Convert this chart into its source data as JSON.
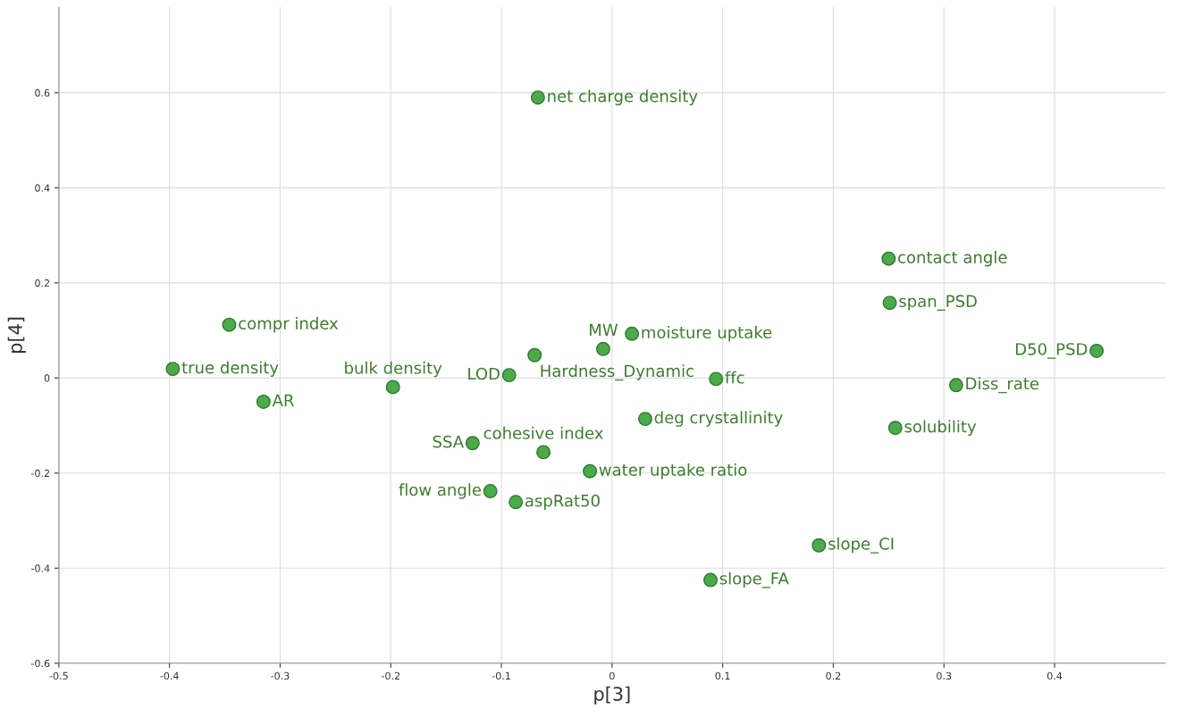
{
  "chart_data": {
    "type": "scatter",
    "xlabel": "p[3]",
    "ylabel": "p[4]",
    "xlim": [
      -0.5,
      0.5
    ],
    "ylim": [
      -0.6,
      0.78
    ],
    "xticks": [
      -0.5,
      -0.4,
      -0.3,
      -0.2,
      -0.1,
      0,
      0.1,
      0.2,
      0.3,
      0.4
    ],
    "yticks": [
      -0.6,
      -0.4,
      -0.2,
      0,
      0.2,
      0.4,
      0.6
    ],
    "grid": true,
    "marker": "circle",
    "series": [
      {
        "color": "#4caa4c",
        "x": [
          -0.067,
          0.25,
          0.251,
          -0.346,
          -0.008,
          0.018,
          0.438,
          -0.397,
          -0.198,
          -0.093,
          -0.07,
          0.094,
          0.311,
          -0.315,
          0.03,
          0.256,
          -0.126,
          -0.062,
          -0.02,
          -0.11,
          -0.087,
          0.187,
          0.089
        ],
        "values": [
          0.59,
          0.251,
          0.158,
          0.112,
          0.061,
          0.093,
          0.057,
          0.019,
          -0.019,
          0.006,
          0.048,
          -0.002,
          -0.015,
          -0.05,
          -0.086,
          -0.105,
          -0.137,
          -0.156,
          -0.196,
          -0.238,
          -0.261,
          -0.352,
          -0.425
        ]
      }
    ],
    "annotations": [
      {
        "text": "net charge density",
        "x": -0.067,
        "y": 0.59
      },
      {
        "text": "contact angle",
        "x": 0.25,
        "y": 0.251
      },
      {
        "text": "span_PSD",
        "x": 0.251,
        "y": 0.158
      },
      {
        "text": "compr index",
        "x": -0.346,
        "y": 0.112
      },
      {
        "text": "MW",
        "x": -0.008,
        "y": 0.061
      },
      {
        "text": "moisture uptake",
        "x": 0.018,
        "y": 0.093
      },
      {
        "text": "D50_PSD",
        "x": 0.438,
        "y": 0.057
      },
      {
        "text": "true density",
        "x": -0.397,
        "y": 0.019
      },
      {
        "text": "bulk density",
        "x": -0.198,
        "y": -0.019
      },
      {
        "text": "LOD",
        "x": -0.093,
        "y": 0.006
      },
      {
        "text": "Hardness_Dynamic",
        "x": -0.07,
        "y": 0.048
      },
      {
        "text": "ffc",
        "x": 0.094,
        "y": -0.002
      },
      {
        "text": "Diss_rate",
        "x": 0.311,
        "y": -0.015
      },
      {
        "text": "AR",
        "x": -0.315,
        "y": -0.05
      },
      {
        "text": "deg crystallinity",
        "x": 0.03,
        "y": -0.086
      },
      {
        "text": "solubility",
        "x": 0.256,
        "y": -0.105
      },
      {
        "text": "SSA",
        "x": -0.126,
        "y": -0.137
      },
      {
        "text": "cohesive index",
        "x": -0.062,
        "y": -0.156
      },
      {
        "text": "water uptake ratio",
        "x": -0.02,
        "y": -0.196
      },
      {
        "text": "flow angle",
        "x": -0.11,
        "y": -0.238
      },
      {
        "text": "aspRat50",
        "x": -0.087,
        "y": -0.261
      },
      {
        "text": "slope_CI",
        "x": 0.187,
        "y": -0.352
      },
      {
        "text": "slope_FA",
        "x": 0.089,
        "y": -0.425
      }
    ]
  }
}
